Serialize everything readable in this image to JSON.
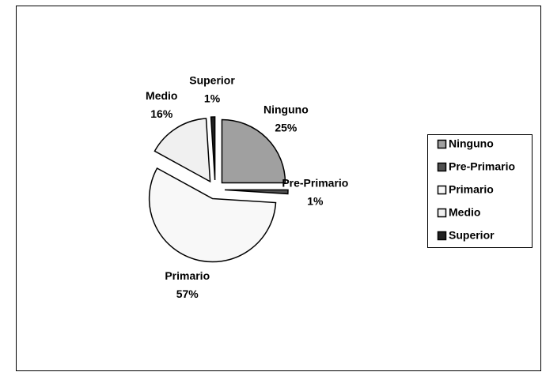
{
  "chart_data": {
    "type": "pie",
    "categories": [
      "Ninguno",
      "Pre-Primario",
      "Primario",
      "Medio",
      "Superior"
    ],
    "values": [
      25,
      1,
      57,
      16,
      1
    ],
    "value_labels": [
      "25%",
      "1%",
      "57%",
      "16%",
      "1%"
    ],
    "colors": [
      "#a0a0a0",
      "#505050",
      "#f8f8f8",
      "#f0f0f0",
      "#202020"
    ],
    "legend": "right"
  }
}
